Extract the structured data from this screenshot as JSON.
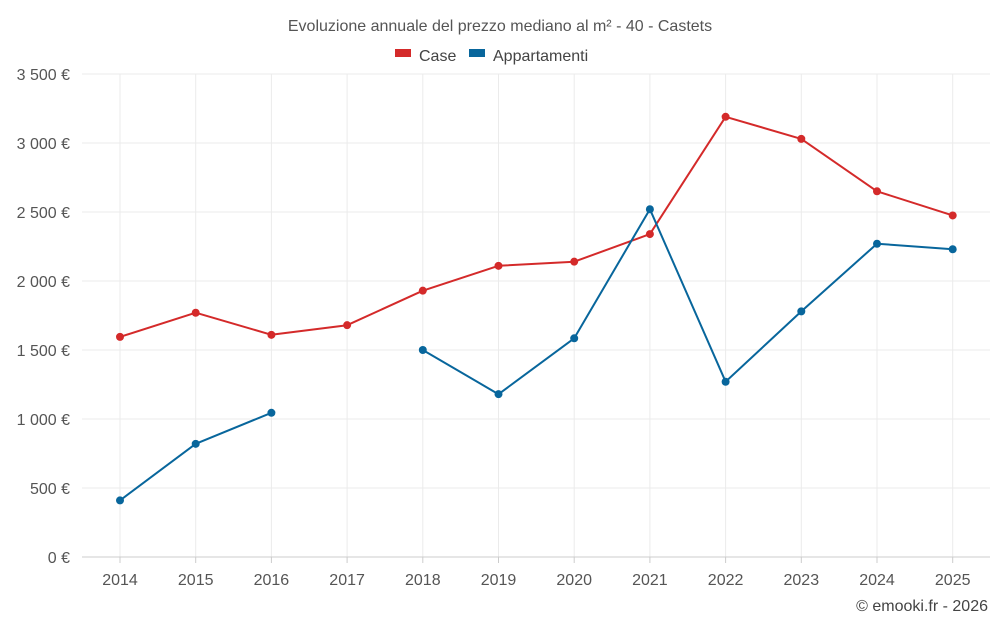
{
  "chart_data": {
    "type": "line",
    "title": "Evoluzione annuale del prezzo mediano al m² - 40 - Castets",
    "categories": [
      "2014",
      "2015",
      "2016",
      "2017",
      "2018",
      "2019",
      "2020",
      "2021",
      "2022",
      "2023",
      "2024",
      "2025"
    ],
    "series": [
      {
        "name": "Case",
        "color": "#d42a2a",
        "values": [
          1595,
          1770,
          1610,
          1680,
          1930,
          2110,
          2140,
          2340,
          3190,
          3030,
          2650,
          2475
        ]
      },
      {
        "name": "Appartamenti",
        "color": "#08669c",
        "values": [
          410,
          820,
          1045,
          null,
          1500,
          1180,
          1585,
          2520,
          1270,
          1780,
          2270,
          2230
        ]
      }
    ],
    "y_ticks": [
      0,
      500,
      1000,
      1500,
      2000,
      2500,
      3000,
      3500
    ],
    "y_tick_labels": [
      "0 €",
      "500 €",
      "1 000 €",
      "1 500 €",
      "2 000 €",
      "2 500 €",
      "3 000 €",
      "3 500 €"
    ],
    "ylim": [
      0,
      3500
    ],
    "xlabel": "",
    "ylabel": "",
    "legend": "top-center",
    "grid": true
  },
  "credit": "© emooki.fr - 2026"
}
